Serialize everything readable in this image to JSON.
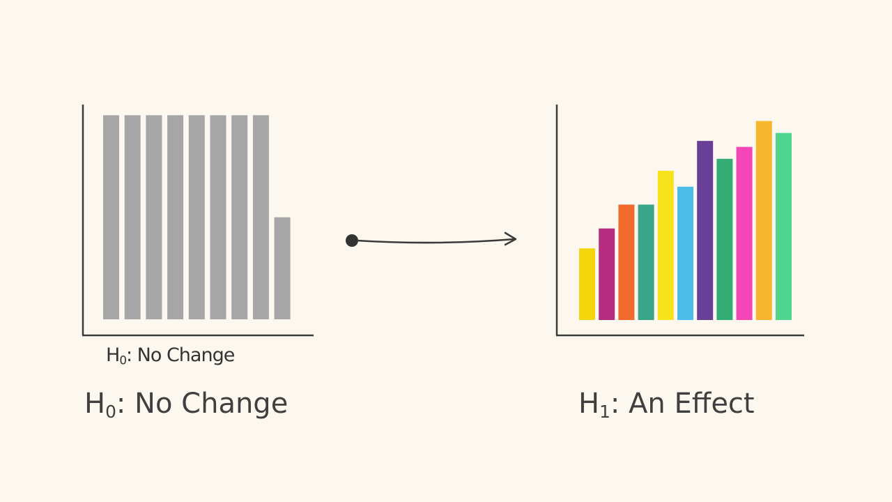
{
  "chart_data": [
    {
      "type": "bar",
      "panel": "left",
      "values": [
        100,
        100,
        100,
        100,
        100,
        100,
        100,
        100,
        50
      ],
      "colors": [
        "#a6a6a6",
        "#a6a6a6",
        "#a6a6a6",
        "#a6a6a6",
        "#a6a6a6",
        "#a6a6a6",
        "#a6a6a6",
        "#a6a6a6",
        "#a6a6a6"
      ],
      "ylim": [
        0,
        110
      ],
      "grid": false,
      "caption_small": {
        "main": "H",
        "sub": "0",
        "rest": ": No Change"
      },
      "caption": {
        "main": "H",
        "sub": "0",
        "rest": ": No Change"
      }
    },
    {
      "type": "bar",
      "panel": "right",
      "values": [
        36,
        46,
        58,
        58,
        75,
        67,
        90,
        81,
        87,
        100,
        94
      ],
      "colors": [
        "#f5d60c",
        "#b52d7e",
        "#f06b2c",
        "#3aa589",
        "#f8e21a",
        "#4cbde8",
        "#6a3f98",
        "#34ad74",
        "#f347b8",
        "#f8b52e",
        "#4fd58c"
      ],
      "ylim": [
        0,
        110
      ],
      "grid": false,
      "caption": {
        "main": "H",
        "sub": "1",
        "rest": ": An Effect"
      }
    }
  ],
  "connector": {
    "type": "arrow",
    "direction": "left-to-right",
    "color": "#3a3a3a"
  },
  "colors": {
    "background": "#fcf8ef",
    "axis": "#3c3c3c",
    "text": "#3f3f3f"
  }
}
